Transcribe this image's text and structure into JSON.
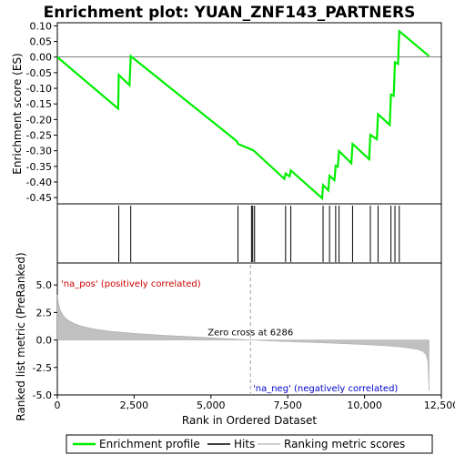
{
  "chart_data": {
    "type": "line",
    "title": "Enrichment plot: YUAN_ZNF143_PARTNERS",
    "top": {
      "ylabel": "Enrichment score (ES)",
      "ylim": [
        -0.47,
        0.11
      ],
      "yticks": [
        0.1,
        0.05,
        0.0,
        -0.05,
        -0.1,
        -0.15,
        -0.2,
        -0.25,
        -0.3,
        -0.35,
        -0.4,
        -0.45
      ],
      "ytick_labels": [
        "0.10",
        "0.05",
        "0.00",
        "-0.05",
        "-0.10",
        "-0.15",
        "-0.20",
        "-0.25",
        "-0.30",
        "-0.35",
        "-0.40",
        "-0.45"
      ],
      "series": [
        {
          "name": "Enrichment profile",
          "color": "#00ee00",
          "x": [
            0,
            1980,
            2000,
            2350,
            2390,
            5850,
            5880,
            6320,
            6360,
            6420,
            7390,
            7430,
            7560,
            7600,
            8620,
            8650,
            8820,
            8860,
            9020,
            9060,
            9130,
            9170,
            9570,
            9610,
            10150,
            10190,
            10400,
            10440,
            10820,
            10860,
            10950,
            10990,
            11090,
            11130,
            12100
          ],
          "y": [
            0.0,
            -0.165,
            -0.057,
            -0.09,
            0.003,
            -0.27,
            -0.278,
            -0.296,
            -0.298,
            -0.302,
            -0.39,
            -0.373,
            -0.382,
            -0.363,
            -0.452,
            -0.41,
            -0.427,
            -0.38,
            -0.394,
            -0.348,
            -0.351,
            -0.301,
            -0.34,
            -0.278,
            -0.327,
            -0.249,
            -0.263,
            -0.183,
            -0.217,
            -0.12,
            -0.124,
            -0.017,
            -0.022,
            0.083,
            0.003
          ]
        }
      ]
    },
    "hits": {
      "x": [
        2000,
        2390,
        5880,
        6320,
        6360,
        6420,
        7430,
        7600,
        8650,
        8860,
        9060,
        9170,
        9610,
        10190,
        10440,
        10860,
        10990,
        11130
      ]
    },
    "heatbar": {
      "segments": [
        {
          "from": 0,
          "to": 300,
          "color": "#e30000"
        },
        {
          "from": 300,
          "to": 2100,
          "color": "#f22b3b"
        },
        {
          "from": 2100,
          "to": 3100,
          "color": "#f65f72"
        },
        {
          "from": 3100,
          "to": 4500,
          "color": "#fa8d9c"
        },
        {
          "from": 4500,
          "to": 5800,
          "color": "#fcbfe0"
        },
        {
          "from": 5800,
          "to": 6300,
          "color": "#fbd3ee"
        },
        {
          "from": 6300,
          "to": 7400,
          "color": "#dcd8fa"
        },
        {
          "from": 7400,
          "to": 8800,
          "color": "#b8b8fb"
        },
        {
          "from": 8800,
          "to": 9800,
          "color": "#8c8cfc"
        },
        {
          "from": 9800,
          "to": 10900,
          "color": "#6a6af9"
        },
        {
          "from": 10900,
          "to": 11600,
          "color": "#4747f4"
        },
        {
          "from": 11600,
          "to": 12100,
          "color": "#1a1aee"
        }
      ]
    },
    "bottom": {
      "ylabel": "Ranked list metric (PreRanked)",
      "xlabel": "Rank in Ordered Dataset",
      "xlim": [
        0,
        12500
      ],
      "ylim": [
        -5.0,
        7.0
      ],
      "yticks": [
        5.0,
        2.5,
        0.0,
        -2.5,
        -5.0
      ],
      "ytick_labels": [
        "5.0",
        "2.5",
        "0.0",
        "-2.5",
        "-5.0"
      ],
      "xticks": [
        0,
        2500,
        5000,
        7500,
        10000,
        12500
      ],
      "xtick_labels": [
        "0",
        "2,500",
        "5,000",
        "7,500",
        "10,000",
        "12,500"
      ],
      "metric_curve": {
        "x": [
          0,
          40,
          100,
          200,
          350,
          550,
          800,
          1200,
          1700,
          2500,
          3500,
          4500,
          5500,
          6286,
          7000,
          8000,
          9000,
          10000,
          10800,
          11300,
          11700,
          11900,
          12000,
          12060,
          12100
        ],
        "y": [
          4.1,
          3.3,
          2.7,
          2.2,
          1.8,
          1.5,
          1.25,
          1.0,
          0.8,
          0.6,
          0.42,
          0.28,
          0.12,
          0.0,
          -0.1,
          -0.2,
          -0.3,
          -0.42,
          -0.55,
          -0.68,
          -0.85,
          -1.05,
          -1.35,
          -2.0,
          -4.6
        ]
      },
      "zero_cross_label": "Zero cross at 6286",
      "zero_cross": 6286,
      "pos_label": "'na_pos' (positively correlated)",
      "neg_label": "'na_neg' (negatively correlated)"
    },
    "legend": {
      "placement": "bottom",
      "entries": [
        {
          "label": "Enrichment profile",
          "color": "#00ee00"
        },
        {
          "label": "Hits",
          "color": "#000000"
        },
        {
          "label": "Ranking metric scores",
          "color": "#c0c0c0"
        }
      ]
    }
  }
}
